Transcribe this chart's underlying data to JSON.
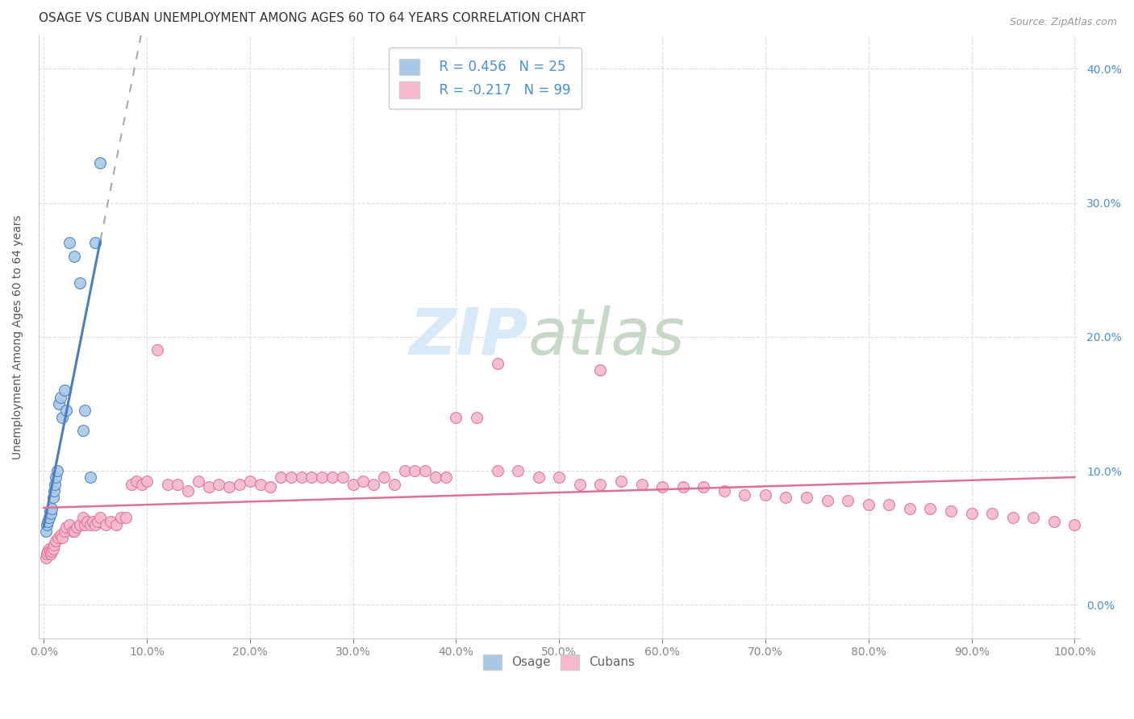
{
  "title": "OSAGE VS CUBAN UNEMPLOYMENT AMONG AGES 60 TO 64 YEARS CORRELATION CHART",
  "source": "Source: ZipAtlas.com",
  "ylabel": "Unemployment Among Ages 60 to 64 years",
  "osage_R": 0.456,
  "osage_N": 25,
  "cuban_R": -0.217,
  "cuban_N": 99,
  "osage_color": "#a8c8e8",
  "osage_line_color": "#4a7fc1",
  "cuban_color": "#f5b8cc",
  "cuban_line_color": "#e07090",
  "legend_text_color": "#4a90d9",
  "watermark_zip": "ZIP",
  "watermark_atlas": "atlas",
  "watermark_color": "#d8eaf8",
  "watermark_atlas_color": "#c8d8c8",
  "background_color": "#ffffff",
  "grid_color": "#dddddd",
  "xlim": [
    -0.005,
    1.005
  ],
  "ylim": [
    -0.025,
    0.425
  ],
  "osage_x": [
    0.002,
    0.003,
    0.004,
    0.005,
    0.006,
    0.007,
    0.008,
    0.009,
    0.01,
    0.011,
    0.012,
    0.013,
    0.015,
    0.016,
    0.018,
    0.02,
    0.022,
    0.025,
    0.03,
    0.035,
    0.038,
    0.04,
    0.045,
    0.05,
    0.055
  ],
  "osage_y": [
    0.055,
    0.06,
    0.062,
    0.065,
    0.07,
    0.068,
    0.072,
    0.08,
    0.085,
    0.09,
    0.095,
    0.1,
    0.15,
    0.155,
    0.14,
    0.16,
    0.145,
    0.27,
    0.26,
    0.24,
    0.13,
    0.145,
    0.095,
    0.27,
    0.33
  ],
  "cuban_x": [
    0.002,
    0.003,
    0.004,
    0.005,
    0.006,
    0.007,
    0.008,
    0.009,
    0.01,
    0.012,
    0.014,
    0.016,
    0.018,
    0.02,
    0.022,
    0.025,
    0.028,
    0.03,
    0.032,
    0.035,
    0.038,
    0.04,
    0.042,
    0.045,
    0.048,
    0.05,
    0.052,
    0.055,
    0.06,
    0.065,
    0.07,
    0.075,
    0.08,
    0.085,
    0.09,
    0.095,
    0.1,
    0.11,
    0.12,
    0.13,
    0.14,
    0.15,
    0.16,
    0.17,
    0.18,
    0.19,
    0.2,
    0.21,
    0.22,
    0.23,
    0.24,
    0.25,
    0.26,
    0.27,
    0.28,
    0.29,
    0.3,
    0.31,
    0.32,
    0.33,
    0.34,
    0.35,
    0.36,
    0.37,
    0.38,
    0.39,
    0.4,
    0.42,
    0.44,
    0.46,
    0.48,
    0.5,
    0.52,
    0.54,
    0.56,
    0.58,
    0.6,
    0.62,
    0.64,
    0.66,
    0.68,
    0.7,
    0.72,
    0.74,
    0.76,
    0.78,
    0.8,
    0.82,
    0.84,
    0.86,
    0.88,
    0.9,
    0.92,
    0.94,
    0.96,
    0.98,
    1.0,
    0.44,
    0.54
  ],
  "cuban_y": [
    0.035,
    0.038,
    0.04,
    0.042,
    0.04,
    0.038,
    0.04,
    0.042,
    0.045,
    0.048,
    0.05,
    0.052,
    0.05,
    0.055,
    0.058,
    0.06,
    0.055,
    0.055,
    0.058,
    0.06,
    0.065,
    0.06,
    0.062,
    0.06,
    0.062,
    0.06,
    0.062,
    0.065,
    0.06,
    0.062,
    0.06,
    0.065,
    0.065,
    0.09,
    0.092,
    0.09,
    0.092,
    0.19,
    0.09,
    0.09,
    0.085,
    0.092,
    0.088,
    0.09,
    0.088,
    0.09,
    0.092,
    0.09,
    0.088,
    0.095,
    0.095,
    0.095,
    0.095,
    0.095,
    0.095,
    0.095,
    0.09,
    0.092,
    0.09,
    0.095,
    0.09,
    0.1,
    0.1,
    0.1,
    0.095,
    0.095,
    0.14,
    0.14,
    0.1,
    0.1,
    0.095,
    0.095,
    0.09,
    0.09,
    0.092,
    0.09,
    0.088,
    0.088,
    0.088,
    0.085,
    0.082,
    0.082,
    0.08,
    0.08,
    0.078,
    0.078,
    0.075,
    0.075,
    0.072,
    0.072,
    0.07,
    0.068,
    0.068,
    0.065,
    0.065,
    0.062,
    0.06,
    0.18,
    0.175
  ],
  "tick_fontsize": 10,
  "label_fontsize": 10,
  "title_fontsize": 11
}
